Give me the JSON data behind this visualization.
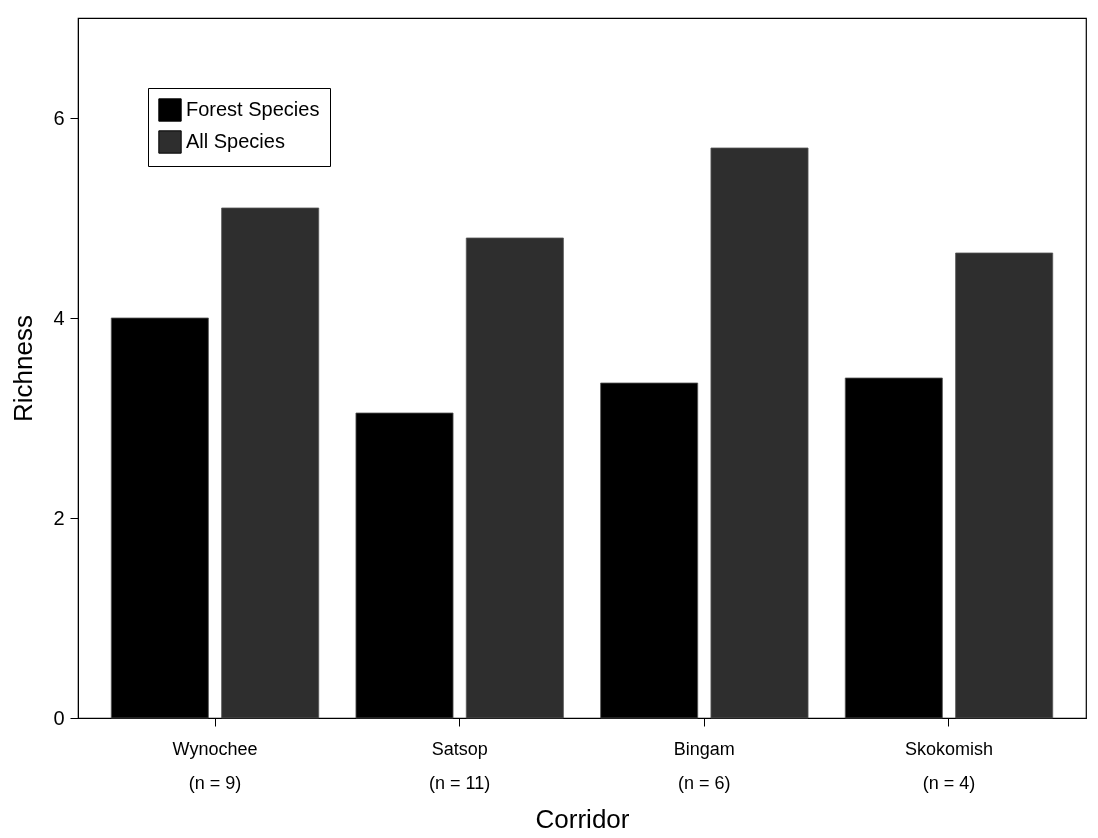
{
  "chart_data": {
    "type": "bar",
    "xlabel": "Corridor",
    "ylabel": "Richness",
    "categories": [
      "Wynochee\n(n = 9)",
      "Satsop\n(n = 11)",
      "Bingam\n(n = 6)",
      "Skokomish\n(n = 4)"
    ],
    "series": [
      {
        "name": "Forest Species",
        "color": "#000000",
        "values": [
          4.0,
          3.05,
          3.35,
          3.4
        ]
      },
      {
        "name": "All Species",
        "color": "#2e2e2e",
        "values": [
          5.1,
          4.8,
          5.7,
          4.65
        ]
      }
    ],
    "ylim": [
      0,
      7
    ],
    "yticks": [
      0,
      2,
      4,
      6
    ],
    "grid": false,
    "legend": "top left"
  }
}
